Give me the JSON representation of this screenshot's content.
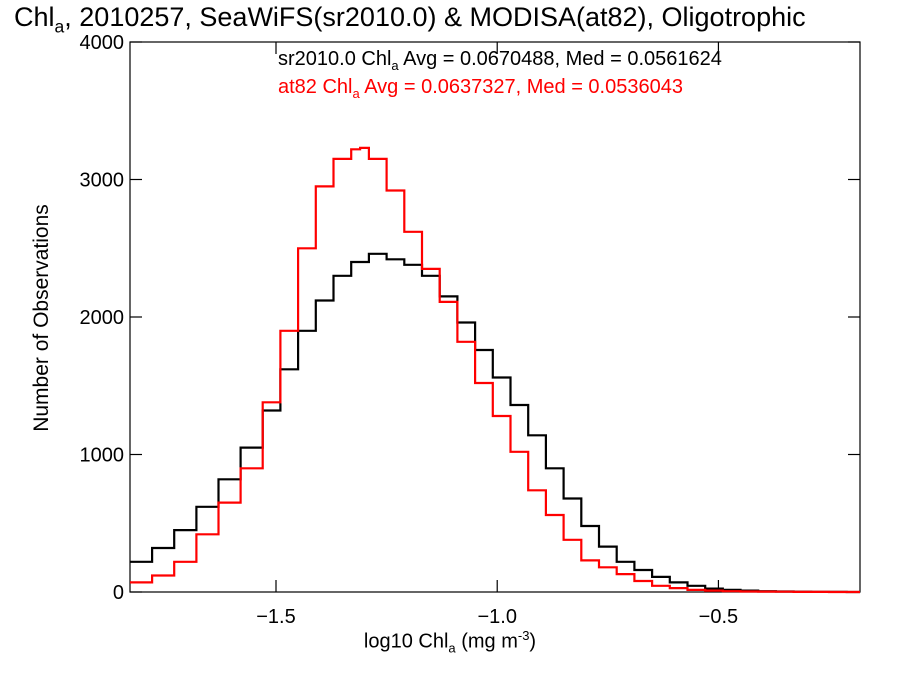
{
  "chart_data": {
    "type": "line",
    "title": {
      "a": "Chl",
      "b": "a",
      "c": ", 2010257, SeaWiFS(sr2010.0) & MODISA(at82), Oligotrophic"
    },
    "xlabel": {
      "a": "log10 Chl",
      "b": "a",
      "c": " (mg m",
      "d": "-3",
      "e": ")"
    },
    "ylabel": "Number of Observations",
    "xlim": [
      -1.83,
      -0.18
    ],
    "ylim": [
      0,
      4000
    ],
    "xticks": [
      -1.5,
      -1.0,
      -0.5
    ],
    "xtick_labels": [
      "−1.5",
      "−1.0",
      "−0.5"
    ],
    "yticks": [
      0,
      1000,
      2000,
      3000,
      4000
    ],
    "ytick_labels": [
      "0",
      "1000",
      "2000",
      "3000",
      "4000"
    ],
    "legend_placement": "top-right",
    "series": [
      {
        "name": "sr2010.0",
        "label": {
          "a": "sr2010.0 Chl",
          "b": "a",
          "c": " Avg = 0.0670488, Med = 0.0561624"
        },
        "color": "#000000",
        "x": [
          -1.83,
          -1.78,
          -1.73,
          -1.68,
          -1.63,
          -1.58,
          -1.53,
          -1.49,
          -1.45,
          -1.41,
          -1.37,
          -1.33,
          -1.29,
          -1.25,
          -1.21,
          -1.17,
          -1.13,
          -1.09,
          -1.05,
          -1.01,
          -0.97,
          -0.93,
          -0.89,
          -0.85,
          -0.81,
          -0.77,
          -0.73,
          -0.69,
          -0.65,
          -0.61,
          -0.57,
          -0.53,
          -0.49,
          -0.45,
          -0.41,
          -0.37,
          -0.33,
          -0.29,
          -0.25,
          -0.21,
          -0.18
        ],
        "y": [
          220,
          320,
          450,
          620,
          820,
          1050,
          1320,
          1620,
          1900,
          2120,
          2300,
          2400,
          2460,
          2420,
          2380,
          2300,
          2150,
          1960,
          1760,
          1560,
          1360,
          1140,
          900,
          680,
          480,
          330,
          220,
          160,
          110,
          70,
          45,
          25,
          15,
          10,
          6,
          4,
          2,
          1,
          1,
          0,
          0
        ]
      },
      {
        "name": "at82",
        "label": {
          "a": "at82 Chl",
          "b": "a",
          "c": " Avg = 0.0637327, Med = 0.0536043"
        },
        "color": "#ff0000",
        "x": [
          -1.83,
          -1.78,
          -1.73,
          -1.68,
          -1.63,
          -1.58,
          -1.53,
          -1.49,
          -1.45,
          -1.41,
          -1.37,
          -1.33,
          -1.31,
          -1.29,
          -1.25,
          -1.21,
          -1.17,
          -1.13,
          -1.09,
          -1.05,
          -1.01,
          -0.97,
          -0.93,
          -0.89,
          -0.85,
          -0.81,
          -0.77,
          -0.73,
          -0.69,
          -0.65,
          -0.61,
          -0.57,
          -0.53,
          -0.49,
          -0.45,
          -0.41,
          -0.37,
          -0.33,
          -0.29,
          -0.25,
          -0.21,
          -0.18
        ],
        "y": [
          70,
          120,
          220,
          420,
          650,
          900,
          1380,
          1900,
          2500,
          2950,
          3150,
          3220,
          3230,
          3150,
          2920,
          2620,
          2350,
          2110,
          1820,
          1520,
          1280,
          1020,
          740,
          560,
          380,
          230,
          180,
          130,
          80,
          45,
          28,
          15,
          10,
          6,
          4,
          3,
          2,
          1,
          1,
          0,
          0,
          0
        ]
      }
    ]
  }
}
